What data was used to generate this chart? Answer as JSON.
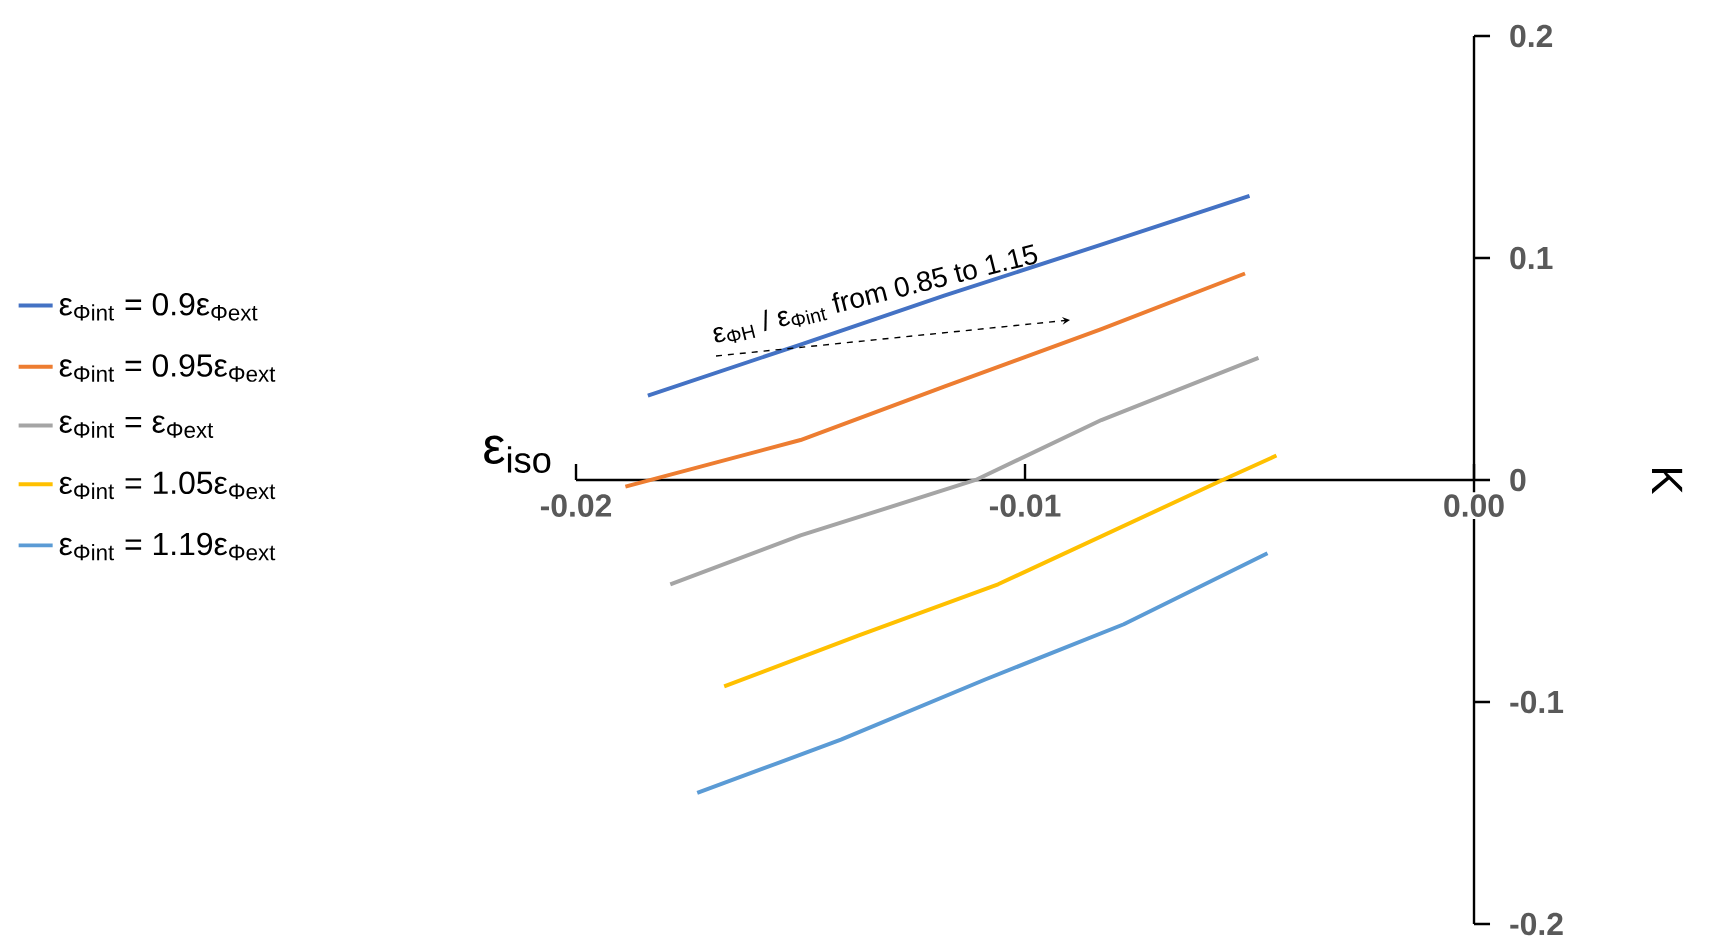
{
  "chart_data": {
    "type": "line",
    "xlabel": "ε$_{iso}$",
    "ylabel": "K",
    "xlim": [
      -0.02,
      0
    ],
    "xticks": [
      -0.02,
      -0.01,
      {
        "value": 0,
        "label": "0.00"
      }
    ],
    "ylim": [
      -0.2,
      0.2
    ],
    "yticks": [
      -0.2,
      -0.1,
      0,
      0.1,
      0.2
    ],
    "legend": "left",
    "marker": "none",
    "line_style": "solid",
    "grid": false,
    "annotations": [
      "ε$_{ΦH}$ / ε$_{Φint}$ from 0.85 to 1.15"
    ],
    "series": [
      {
        "name": "ε$_{Φint}$ = 0.9ε$_{Φext}$",
        "color": "#4472c4",
        "x": [
          -0.0184,
          -0.015,
          -0.0118,
          -0.0083,
          -0.005
        ],
        "values": [
          0.038,
          0.061,
          0.083,
          0.106,
          0.128
        ]
      },
      {
        "name": "ε$_{Φint}$ = 0.95ε$_{Φext}$",
        "color": "#ed7d31",
        "x": [
          -0.0189,
          -0.015,
          -0.0118,
          -0.0083,
          -0.0051
        ],
        "values": [
          -0.003,
          0.018,
          0.042,
          0.068,
          0.093
        ]
      },
      {
        "name": "ε$_{Φint}$ = ε$_{Φext}$",
        "color": "#a5a5a5",
        "x": [
          -0.0179,
          -0.015,
          -0.0111,
          -0.0083,
          -0.0048
        ],
        "values": [
          -0.047,
          -0.025,
          0.0,
          0.027,
          0.055
        ]
      },
      {
        "name": "ε$_{Φint}$ = 1.05ε$_{Φext}$",
        "color": "#ffc000",
        "x": [
          -0.0167,
          -0.0137,
          -0.0106,
          -0.0056,
          -0.0044
        ],
        "values": [
          -0.093,
          -0.07,
          -0.047,
          0.0,
          0.011
        ]
      },
      {
        "name": "ε$_{Φint}$ = 1.19ε$_{Φext}$",
        "color": "#5b9bd5",
        "x": [
          -0.0173,
          -0.0141,
          -0.0109,
          -0.0078,
          -0.0046
        ],
        "values": [
          -0.141,
          -0.117,
          -0.09,
          -0.065,
          -0.033
        ]
      }
    ]
  }
}
